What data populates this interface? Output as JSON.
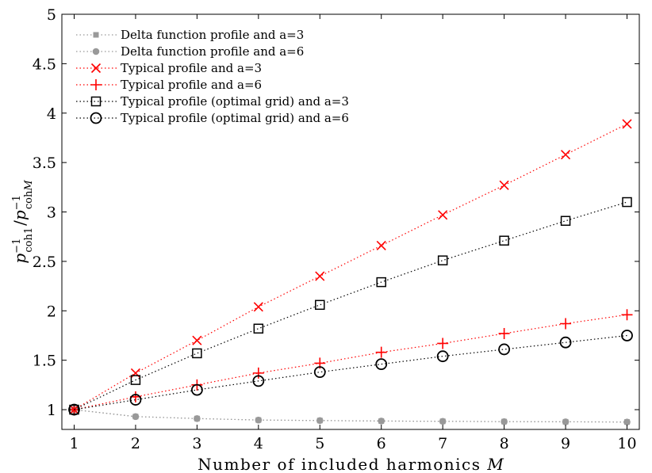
{
  "chart_data": {
    "type": "line",
    "x": [
      1,
      2,
      3,
      4,
      5,
      6,
      7,
      8,
      9,
      10
    ],
    "xlim": [
      0.8,
      10.2
    ],
    "ylim": [
      0.8,
      5
    ],
    "xticks": [
      1,
      2,
      3,
      4,
      5,
      6,
      7,
      8,
      9,
      10
    ],
    "yticks": [
      1,
      1.5,
      2,
      2.5,
      3,
      3.5,
      4,
      4.5,
      5
    ],
    "xtick_labels": [
      "1",
      "2",
      "3",
      "4",
      "5",
      "6",
      "7",
      "8",
      "9",
      "10"
    ],
    "ytick_labels": [
      "1",
      "1.5",
      "2",
      "2.5",
      "3",
      "3.5",
      "4",
      "4.5",
      "5"
    ],
    "xlabel_text": "Number of included harmonics ",
    "xlabel_var": "M",
    "ylabel": {
      "p1": "p",
      "sup1": "−1",
      "sub1": "coh1",
      "slash": "/",
      "p2": "p",
      "sup2": "−1",
      "sub2a": "coh",
      "sub2b": "M"
    },
    "grid": false,
    "legend_position": "top-left",
    "series": [
      {
        "name": "Delta function profile and a=3",
        "color": "#999999",
        "marker": "square-filled",
        "values": [
          1,
          0.93,
          0.91,
          0.895,
          0.89,
          0.885,
          0.882,
          0.879,
          0.877,
          0.875
        ]
      },
      {
        "name": "Delta function profile and a=6",
        "color": "#999999",
        "marker": "circle-filled",
        "values": [
          1,
          0.93,
          0.91,
          0.895,
          0.89,
          0.885,
          0.882,
          0.879,
          0.877,
          0.875
        ]
      },
      {
        "name": "Typical profile and a=3",
        "color": "#ff0000",
        "marker": "x",
        "values": [
          1,
          1.37,
          1.7,
          2.04,
          2.35,
          2.66,
          2.97,
          3.27,
          3.58,
          3.89
        ]
      },
      {
        "name": "Typical profile and a=6",
        "color": "#ff0000",
        "marker": "plus",
        "values": [
          1,
          1.13,
          1.25,
          1.37,
          1.47,
          1.58,
          1.67,
          1.77,
          1.87,
          1.96
        ]
      },
      {
        "name": "Typical profile (optimal grid) and a=3",
        "color": "#000000",
        "marker": "square-open",
        "values": [
          1,
          1.3,
          1.57,
          1.82,
          2.06,
          2.29,
          2.51,
          2.71,
          2.91,
          3.1
        ]
      },
      {
        "name": "Typical profile (optimal grid) and a=6",
        "color": "#000000",
        "marker": "circle-open",
        "values": [
          1,
          1.1,
          1.2,
          1.29,
          1.38,
          1.46,
          1.54,
          1.61,
          1.68,
          1.75
        ]
      }
    ]
  }
}
